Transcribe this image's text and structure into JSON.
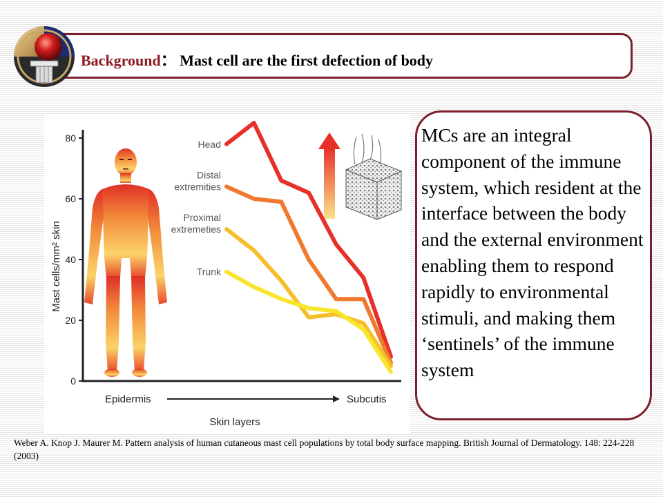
{
  "slide": {
    "title_key": "Background",
    "title_sep": "：",
    "title_rest": "Mast cell are the first defection of body",
    "body_text": "MCs are an integral component of the immune system, which resident at the interface between the body and the external environment enabling them to respond rapidly to environmental stimuli, and making them ‘sentinels’ of the immune system",
    "citation": "Weber A. Knop J. Maurer M. Pattern analysis of human cutaneous mast cell populations by total body surface mapping. British Journal of Dermatology. 148: 224-228 (2003)",
    "logo_icon": "sphere-pillar-logo-icon",
    "body_figure_icon": "human-body-gradient-figure-icon",
    "skin_icon": "skin-block-icon",
    "arrow_icon": "gradient-up-arrow-icon"
  },
  "chart_data": {
    "type": "line",
    "xlabel": "Skin layers",
    "x_start_label": "Epidermis",
    "x_end_label": "Subcutis",
    "ylabel": "Mast cells/mm² skin",
    "ylim": [
      0,
      85
    ],
    "yticks": [
      "0",
      "20",
      "40",
      "60",
      "80"
    ],
    "ytick_values": [
      0,
      20,
      40,
      60,
      80
    ],
    "x": [
      0,
      1,
      2,
      3,
      4,
      5,
      6
    ],
    "series": [
      {
        "name": "Head",
        "color": "#e8302a",
        "values": [
          78,
          85,
          66,
          62,
          45,
          34,
          8
        ]
      },
      {
        "name": "Distal extremities",
        "label_lines": [
          "Distal",
          "extremities"
        ],
        "color": "#ef7a2e",
        "values": [
          64,
          60,
          59,
          40,
          27,
          27,
          6
        ]
      },
      {
        "name": "Proximal extremeties",
        "label_lines": [
          "Proximal",
          "extremeties"
        ],
        "color": "#f7be2c",
        "values": [
          50,
          43,
          33,
          21,
          22,
          19,
          5
        ]
      },
      {
        "name": "Trunk",
        "color": "#f7e62c",
        "values": [
          36,
          31,
          27,
          24,
          23,
          17,
          3
        ]
      }
    ]
  }
}
